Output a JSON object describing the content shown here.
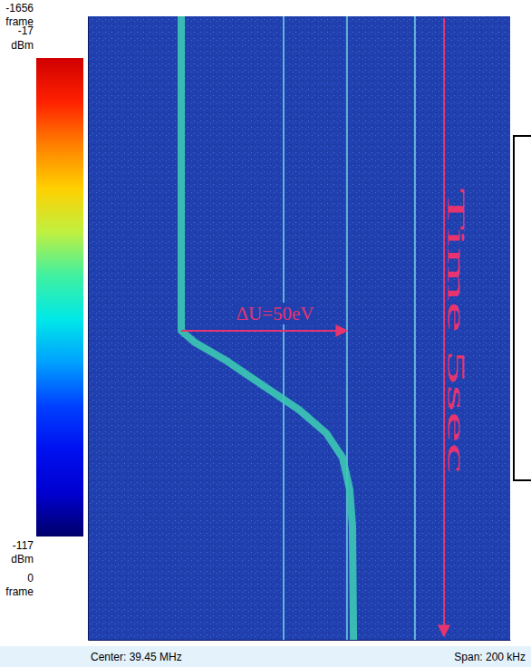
{
  "chart_data": {
    "type": "waterfall",
    "xlim": [
      39.35,
      39.55
    ],
    "ylim": [
      0,
      -1656
    ],
    "yticks": [
      -1656,
      0
    ],
    "ylabel": "frame",
    "tick_labels": "y",
    "series": [
      {
        "x": [
          39.3942,
          39.3942,
          39.4006,
          39.4157,
          39.4328,
          39.45,
          39.4629,
          39.4706,
          39.474,
          39.4753,
          39.4758
        ],
        "values": [
          -1656,
          -821,
          -790,
          -741,
          -676,
          -611,
          -549,
          -484,
          -400,
          -303,
          0
        ],
        "color": "#3cc8b4"
      }
    ],
    "spurs": {
      "x": [
        39.4427,
        39.4727,
        39.5049
      ],
      "color": "#6ccbe0"
    },
    "colorbar": {
      "range": [
        -117,
        -17
      ],
      "ticks": [
        -117,
        -17
      ],
      "label": "dBm",
      "colors": [
        "#00006a",
        "#0000d0",
        "#0010f0",
        "#0040ff",
        "#00a0ff",
        "#00e8e8",
        "#40f0a0",
        "#c0f040",
        "#ffd000",
        "#ff8000",
        "#ff2000",
        "#d00000"
      ]
    },
    "annotations": [
      {
        "text": "ΔU=50eV",
        "x": [
          39.3942,
          39.4727
        ],
        "y": -821,
        "color": "#e8336e"
      },
      {
        "text": "Time 5sec",
        "color": "#e8336e"
      }
    ],
    "center_label": "Center: 39.45 MHz",
    "span_label": "Span: 200 kHz"
  }
}
